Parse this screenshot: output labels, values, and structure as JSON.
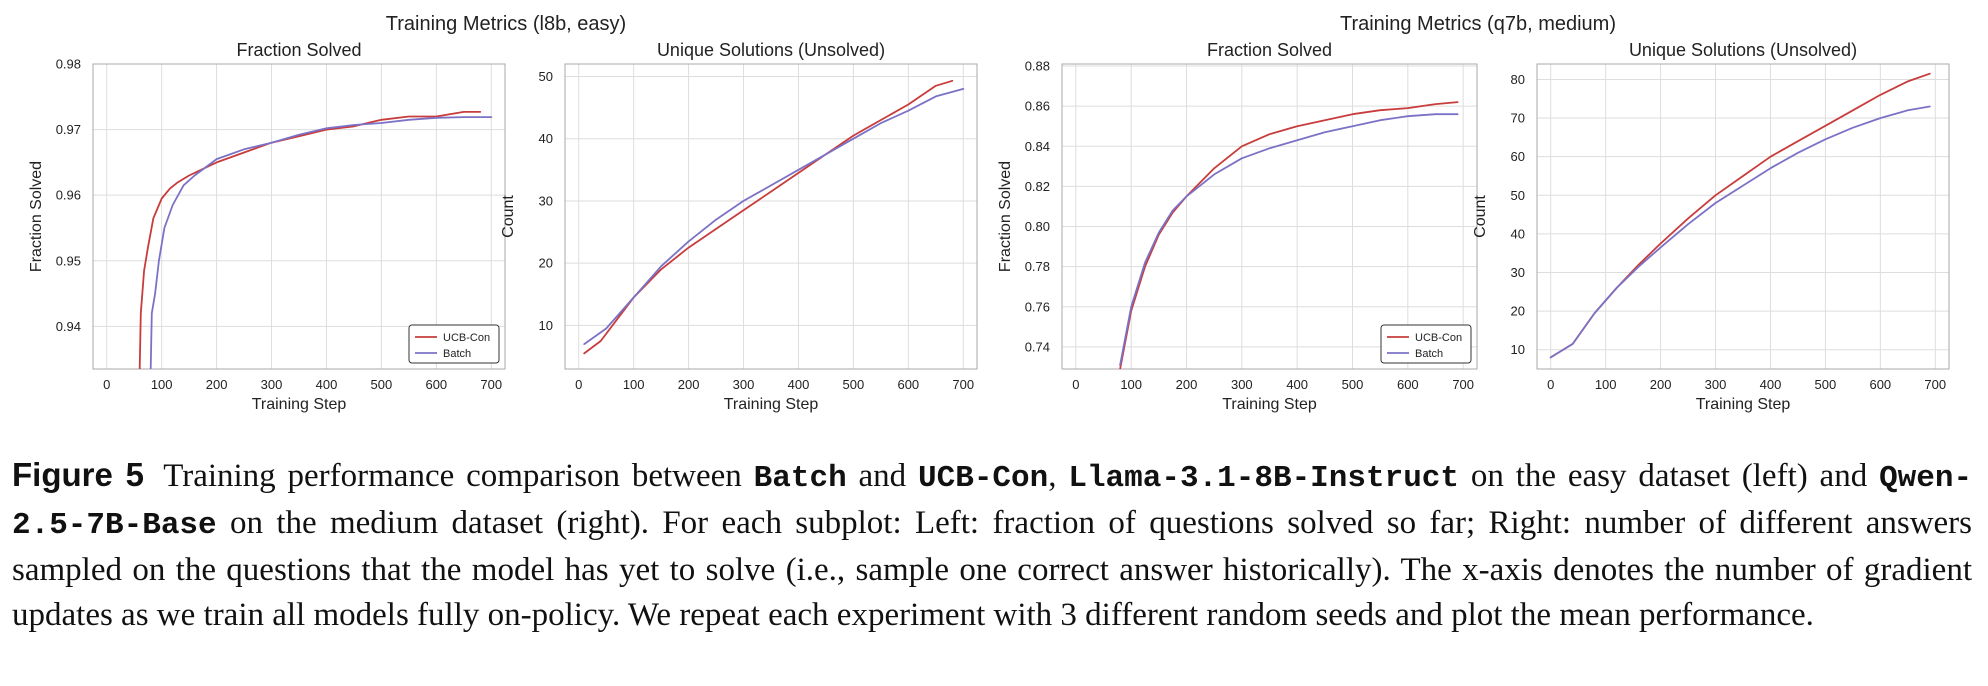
{
  "figure": {
    "suptitles": [
      "Training Metrics (l8b, easy)",
      "Training Metrics (q7b, medium)"
    ],
    "caption": {
      "label": "Figure 5",
      "t1": "Training performance comparison between",
      "c1": "Batch",
      "t2": "and",
      "c2": "UCB-Con",
      "t3": ",",
      "c3": "Llama-3.1-8B-Instruct",
      "t4": "on the easy dataset (left) and",
      "c4": "Qwen-2.5-7B-Base",
      "t5": "on the medium dataset (right). For each subplot: Left: fraction of questions solved so far; Right: number of different answers sampled on the questions that the model has yet to solve (i.e., sample one correct answer historically). The x-axis denotes the number of gradient updates as we train all models fully on-policy. We repeat each experiment with 3 different random seeds and plot the mean performance."
    },
    "colors": {
      "ucb": "#c83c3c",
      "batch": "#7b72c6",
      "grid": "#dddddd",
      "axis": "#aaaaaa",
      "text": "#222222"
    }
  },
  "chart_data": [
    {
      "type": "line",
      "title": "Fraction Solved",
      "group": "Training Metrics (l8b, easy)",
      "xlabel": "Training Step",
      "ylabel": "Fraction Solved",
      "xlim": [
        -25,
        725
      ],
      "ylim": [
        0.9335,
        0.98
      ],
      "xticks": [
        0,
        100,
        200,
        300,
        400,
        500,
        600,
        700
      ],
      "yticks": [
        0.94,
        0.95,
        0.96,
        0.97,
        0.98
      ],
      "legend": "lower-right",
      "series": [
        {
          "name": "UCB-Con",
          "x": [
            60,
            62,
            68,
            75,
            85,
            100,
            115,
            130,
            150,
            175,
            200,
            250,
            300,
            350,
            400,
            450,
            500,
            550,
            600,
            650,
            680
          ],
          "y": [
            0.9335,
            0.942,
            0.9485,
            0.952,
            0.9565,
            0.9595,
            0.961,
            0.962,
            0.963,
            0.964,
            0.965,
            0.9665,
            0.968,
            0.969,
            0.97,
            0.9705,
            0.9715,
            0.972,
            0.972,
            0.9727,
            0.9727
          ]
        },
        {
          "name": "Batch",
          "x": [
            80,
            82,
            88,
            95,
            105,
            120,
            140,
            160,
            200,
            250,
            300,
            350,
            400,
            450,
            500,
            550,
            600,
            650,
            700
          ],
          "y": [
            0.9335,
            0.942,
            0.945,
            0.95,
            0.955,
            0.9585,
            0.9615,
            0.963,
            0.9655,
            0.967,
            0.968,
            0.9692,
            0.9702,
            0.9707,
            0.971,
            0.9715,
            0.9718,
            0.9719,
            0.9719
          ]
        }
      ]
    },
    {
      "type": "line",
      "title": "Unique Solutions (Unsolved)",
      "group": "Training Metrics (l8b, easy)",
      "xlabel": "Training Step",
      "ylabel": "Count",
      "xlim": [
        -25,
        725
      ],
      "ylim": [
        3,
        52
      ],
      "xticks": [
        0,
        100,
        200,
        300,
        400,
        500,
        600,
        700
      ],
      "yticks": [
        10,
        20,
        30,
        40,
        50
      ],
      "series": [
        {
          "name": "UCB-Con",
          "x": [
            10,
            40,
            70,
            100,
            150,
            200,
            250,
            300,
            350,
            400,
            450,
            500,
            550,
            600,
            650,
            680
          ],
          "y": [
            5.5,
            7.5,
            11,
            14.5,
            19,
            22.5,
            25.5,
            28.5,
            31.5,
            34.5,
            37.5,
            40.5,
            43,
            45.5,
            48.5,
            49.3
          ]
        },
        {
          "name": "Batch",
          "x": [
            10,
            50,
            100,
            150,
            200,
            250,
            300,
            350,
            400,
            450,
            500,
            550,
            600,
            650,
            700
          ],
          "y": [
            7.0,
            9.5,
            14.5,
            19.5,
            23.5,
            27,
            30,
            32.5,
            35,
            37.5,
            40,
            42.5,
            44.5,
            46.8,
            48
          ]
        }
      ]
    },
    {
      "type": "line",
      "title": "Fraction Solved",
      "group": "Training Metrics (q7b, medium)",
      "xlabel": "Training Step",
      "ylabel": "Fraction Solved",
      "xlim": [
        -25,
        725
      ],
      "ylim": [
        0.729,
        0.881
      ],
      "xticks": [
        0,
        100,
        200,
        300,
        400,
        500,
        600,
        700
      ],
      "yticks": [
        0.74,
        0.76,
        0.78,
        0.8,
        0.82,
        0.84,
        0.86,
        0.88
      ],
      "legend": "lower-right",
      "series": [
        {
          "name": "UCB-Con",
          "x": [
            80,
            100,
            125,
            150,
            175,
            200,
            250,
            300,
            350,
            400,
            450,
            500,
            550,
            600,
            650,
            690
          ],
          "y": [
            0.729,
            0.758,
            0.78,
            0.796,
            0.807,
            0.815,
            0.829,
            0.84,
            0.846,
            0.85,
            0.853,
            0.856,
            0.858,
            0.859,
            0.861,
            0.862
          ]
        },
        {
          "name": "Batch",
          "x": [
            80,
            100,
            125,
            150,
            175,
            200,
            250,
            300,
            350,
            400,
            450,
            500,
            550,
            600,
            650,
            690
          ],
          "y": [
            0.731,
            0.76,
            0.782,
            0.797,
            0.808,
            0.815,
            0.826,
            0.834,
            0.839,
            0.843,
            0.847,
            0.85,
            0.853,
            0.855,
            0.856,
            0.856
          ]
        }
      ]
    },
    {
      "type": "line",
      "title": "Unique Solutions (Unsolved)",
      "group": "Training Metrics (q7b, medium)",
      "xlabel": "Training Step",
      "ylabel": "Count",
      "xlim": [
        -25,
        725
      ],
      "ylim": [
        5,
        84
      ],
      "xticks": [
        0,
        100,
        200,
        300,
        400,
        500,
        600,
        700
      ],
      "yticks": [
        10,
        20,
        30,
        40,
        50,
        60,
        70,
        80
      ],
      "series": [
        {
          "name": "UCB-Con",
          "x": [
            0,
            40,
            80,
            120,
            160,
            200,
            250,
            300,
            350,
            400,
            450,
            500,
            550,
            600,
            650,
            690
          ],
          "y": [
            8,
            11.5,
            19.5,
            26,
            32,
            37.5,
            44,
            50,
            55,
            60,
            64,
            68,
            72,
            76,
            79.5,
            81.5
          ]
        },
        {
          "name": "Batch",
          "x": [
            0,
            40,
            80,
            120,
            160,
            200,
            250,
            300,
            350,
            400,
            450,
            500,
            550,
            600,
            650,
            690
          ],
          "y": [
            8,
            11.5,
            19.5,
            26,
            31.5,
            36.5,
            42.5,
            48,
            52.5,
            57,
            61,
            64.5,
            67.5,
            70,
            72,
            73
          ]
        }
      ]
    }
  ]
}
